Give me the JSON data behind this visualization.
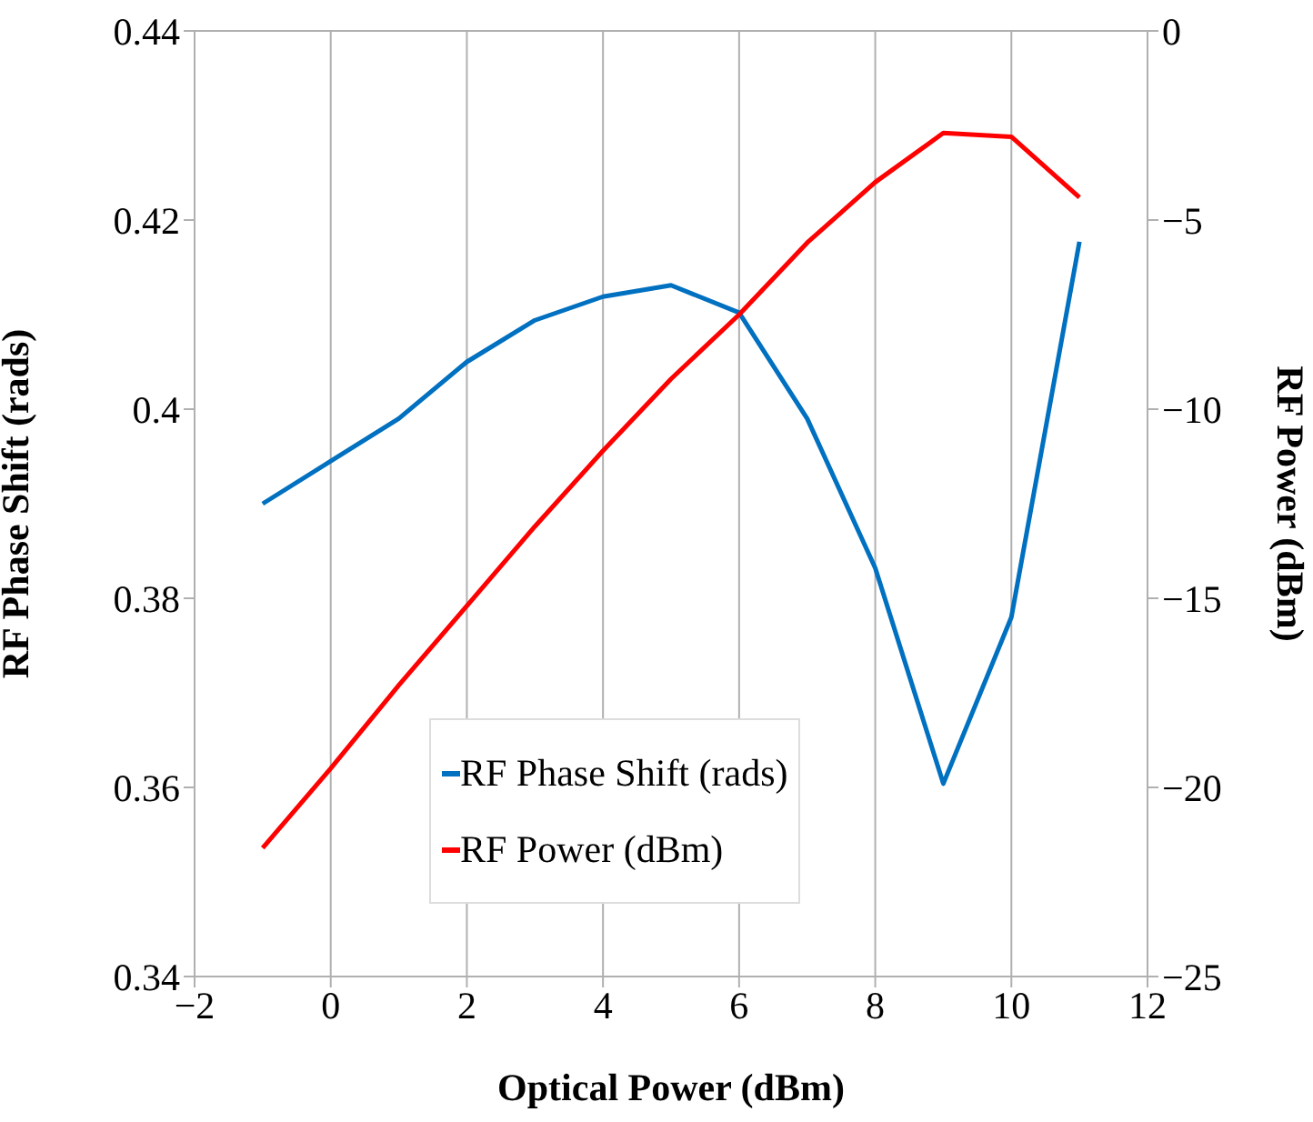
{
  "chart_data": {
    "type": "line",
    "xlabel": "Optical Power (dBm)",
    "ylabel": "RF Phase Shift (rads)",
    "y2label": "RF Power (dBm)",
    "x": [
      -1,
      0,
      1,
      2,
      3,
      4,
      5,
      6,
      7,
      8,
      9,
      10,
      11
    ],
    "series": [
      {
        "name": "RF Phase Shift (rads)",
        "color": "#0070c0",
        "values": [
          0.39,
          0.3945,
          0.399,
          0.405,
          0.4094,
          0.4119,
          0.4131,
          0.4102,
          0.399,
          0.3832,
          0.3604,
          0.378,
          0.4177
        ]
      },
      {
        "name": "RF Power (dBm)",
        "color": "#ff0000",
        "axis": "y2",
        "values": [
          -21.6,
          -19.5,
          -17.3,
          -15.2,
          -13.1,
          -11.1,
          -9.2,
          -7.5,
          -5.6,
          -4.0,
          -2.7,
          -2.8,
          -4.4
        ]
      }
    ],
    "xlim": [
      -2,
      12
    ],
    "xticks": [
      -2,
      0,
      2,
      4,
      6,
      8,
      10,
      12
    ],
    "ylim": [
      0.34,
      0.44
    ],
    "yticks": [
      0.34,
      0.36,
      0.38,
      0.4,
      0.42,
      0.44
    ],
    "y2lim": [
      -25,
      0
    ],
    "y2ticks": [
      -25,
      -20,
      -15,
      -10,
      -5,
      0
    ],
    "grid": true,
    "legend": "bottom",
    "marker": "none",
    "line_style": "solid"
  }
}
